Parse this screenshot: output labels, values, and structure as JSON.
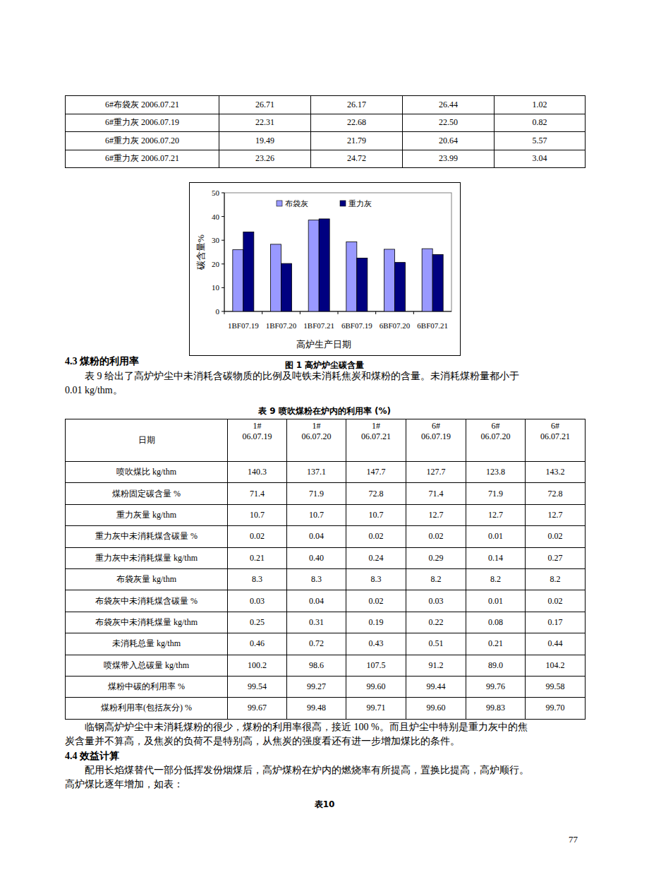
{
  "top_table": {
    "rows": [
      [
        "6#布袋灰 2006.07.21",
        "26.71",
        "26.17",
        "26.44",
        "1.02"
      ],
      [
        "6#重力灰 2006.07.19",
        "22.31",
        "22.68",
        "22.50",
        "0.82"
      ],
      [
        "6#重力灰 2006.07.20",
        "19.49",
        "21.79",
        "20.64",
        "5.57"
      ],
      [
        "6#重力灰 2006.07.21",
        "23.26",
        "24.72",
        "23.99",
        "3.04"
      ]
    ]
  },
  "chart_data": {
    "type": "bar",
    "y_label": "碳含量%",
    "x_label": "高炉生产日期",
    "categories": [
      "1BF07.19",
      "1BF07.20",
      "1BF07.21",
      "6BF07.19",
      "6BF07.20",
      "6BF07.21"
    ],
    "series": [
      {
        "name": "布袋灰",
        "color": "#9999ff",
        "values": [
          26,
          28.3,
          38.5,
          29.3,
          26.2,
          26.44
        ]
      },
      {
        "name": "重力灰",
        "color": "#000080",
        "values": [
          33.5,
          20.2,
          39,
          22.5,
          20.64,
          23.99
        ]
      }
    ],
    "ylim": [
      0,
      50
    ],
    "yticks": [
      0,
      10,
      20,
      30,
      40,
      50
    ],
    "legend": "top"
  },
  "figure_caption": "图 1   高炉炉尘碳含量",
  "section_4_3": {
    "heading": "4.3 煤粉的利用率",
    "paragraphs": [
      [
        "表 9 给出了高炉炉尘中未消耗含碳物质的比例及吨铁未消耗焦炭和煤粉的含量。未消耗煤粉量都小于",
        "0.01 kg/thm。"
      ]
    ]
  },
  "table9": {
    "caption": "表 9   喷吹煤粉在炉内的利用率 (%)",
    "header": [
      "日期",
      [
        "1#",
        "06.07.19"
      ],
      [
        "1#",
        "06.07.20"
      ],
      [
        "1#",
        "06.07.21"
      ],
      [
        "6#",
        "06.07.19"
      ],
      [
        "6#",
        "06.07.20"
      ],
      [
        "6#",
        "06.07.21"
      ]
    ],
    "rows": [
      [
        "喷吹煤比  kg/thm",
        "140.3",
        "137.1",
        "147.7",
        "127.7",
        "123.8",
        "143.2"
      ],
      [
        "煤粉固定碳含量 %",
        "71.4",
        "71.9",
        "72.8",
        "71.4",
        "71.9",
        "72.8"
      ],
      [
        "重力灰量 kg/thm",
        "10.7",
        "10.7",
        "10.7",
        "12.7",
        "12.7",
        "12.7"
      ],
      [
        "重力灰中未消耗煤含碳量 %",
        "0.02",
        "0.04",
        "0.02",
        "0.02",
        "0.01",
        "0.02"
      ],
      [
        "重力灰中未消耗煤量 kg/thm",
        "0.21",
        "0.40",
        "0.24",
        "0.29",
        "0.14",
        "0.27"
      ],
      [
        "布袋灰量 kg/thm",
        "8.3",
        "8.3",
        "8.3",
        "8.2",
        "8.2",
        "8.2"
      ],
      [
        "布袋灰中未消耗煤含碳量 %",
        "0.03",
        "0.04",
        "0.02",
        "0.03",
        "0.01",
        "0.02"
      ],
      [
        "布袋灰中未消耗煤量 kg/thm",
        "0.25",
        "0.31",
        "0.19",
        "0.22",
        "0.08",
        "0.17"
      ],
      [
        "未消耗总量 kg/thm",
        "0.46",
        "0.72",
        "0.43",
        "0.51",
        "0.21",
        "0.44"
      ],
      [
        "喷煤带入总碳量 kg/thm",
        "100.2",
        "98.6",
        "107.5",
        "91.2",
        "89.0",
        "104.2"
      ],
      [
        "煤粉中碳的利用率 %",
        "99.54",
        "99.27",
        "99.60",
        "99.44",
        "99.76",
        "99.58"
      ],
      [
        "煤粉利用率(包括灰分) %",
        "99.67",
        "99.48",
        "99.71",
        "99.60",
        "99.83",
        "99.70"
      ]
    ]
  },
  "after_table9": {
    "paragraphs": [
      [
        "临钢高炉炉尘中未消耗煤粉的很少，煤粉的利用率很高，接近 100 %。而且炉尘中特别是重力灰中的焦",
        "炭含量并不算高，及焦炭的负荷不是特别高，从焦炭的强度看还有进一步增加煤比的条件。"
      ]
    ]
  },
  "section_4_4": {
    "heading": "4.4 效益计算",
    "paragraphs": [
      [
        "配用长焰煤替代一部分低挥发份烟煤后，高炉煤粉在炉内的燃烧率有所提高，置换比提高，高炉顺行。",
        "高炉煤比逐年增加，如表："
      ]
    ]
  },
  "table10_caption": "表10",
  "page_number": "77"
}
